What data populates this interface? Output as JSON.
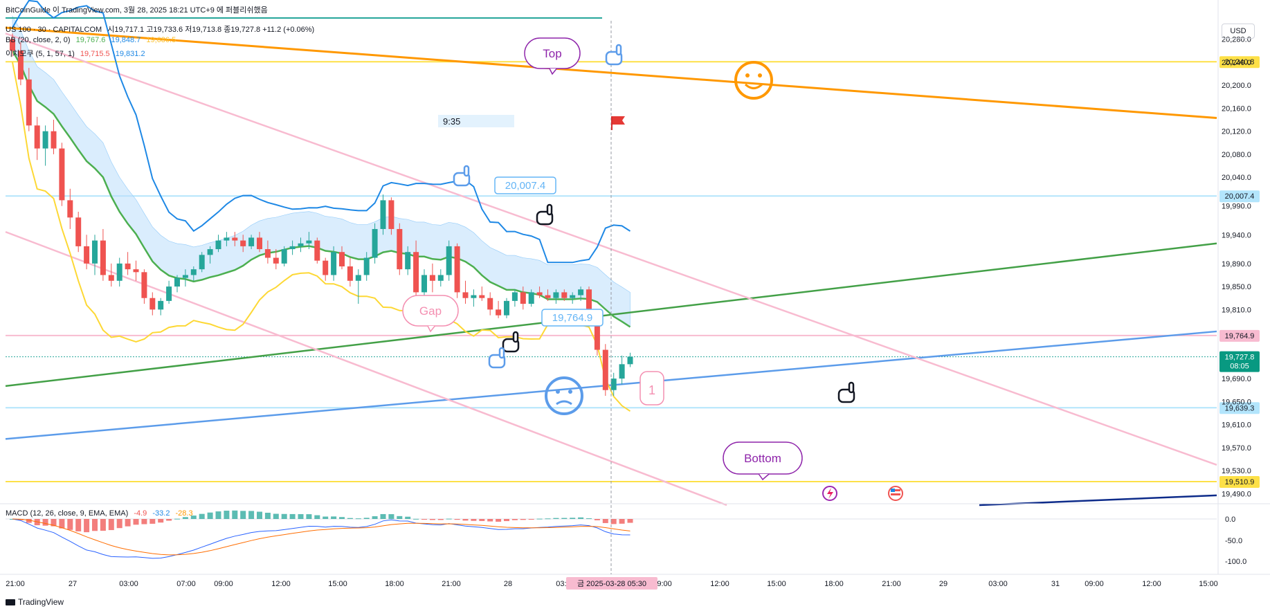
{
  "header": {
    "watermark": "BitCoinGuide 이 TradingView.com, 3월 28, 2025 18:21 UTC+9 에 퍼블리쉬했음",
    "symbol": "US 100 · 30 · CAPITALCOM",
    "ohlc": "시19,717.1  고19,733.6  저19,713.8  종19,727.8  +11.2 (+0.06%)",
    "bb_label": "BB (20, close, 2, 0)",
    "bb_values": [
      "19,767.6",
      "19,848.7",
      "19,686.5"
    ],
    "ichimoku_label": "이치모쿠 (5, 1, 57, 1)",
    "ichimoku_values": [
      "19,715.5",
      "19,831.2"
    ],
    "macd_label": "MACD (12, 26, close, 9, EMA, EMA)",
    "macd_values": [
      "-4.9",
      "-33.2",
      "-28.3"
    ]
  },
  "currency": "USD",
  "footer": {
    "brand": "TradingView"
  },
  "colors": {
    "up": "#26a69a",
    "down": "#ef5350",
    "bb_mid": "#4caf50",
    "bb_upper": "#1e88e5",
    "bb_lower": "#fdd835",
    "cloud": "#bbdefb",
    "orange": "#ff9800",
    "pink": "#f8bbd0",
    "blue_trend": "#5c9cea",
    "green_trend": "#43a047"
  },
  "chart_data": {
    "type": "candlestick",
    "price_axis_ticks": [
      "20,280.0",
      "20,240.0",
      "20,200.0",
      "20,160.0",
      "20,120.0",
      "20,080.0",
      "20,040.0",
      "19,990.0",
      "19,940.0",
      "19,890.0",
      "19,850.0",
      "19,810.0",
      "19,690.0",
      "19,650.0",
      "19,610.0",
      "19,570.0",
      "19,530.0",
      "19,490.0"
    ],
    "macd_axis_ticks": [
      "0.0",
      "-50.0",
      "-100.0"
    ],
    "time_axis_ticks": [
      "21:00",
      "27",
      "03:00",
      "07:00",
      "09:00",
      "12:00",
      "15:00",
      "18:00",
      "21:00",
      "28",
      "03:00",
      "09:00",
      "12:00",
      "15:00",
      "18:00",
      "21:00",
      "29",
      "03:00",
      "31",
      "09:00",
      "12:00",
      "15:00"
    ],
    "price_tags": [
      {
        "value": "20,240.8",
        "style": "yellow"
      },
      {
        "value": "20,007.4",
        "style": "lightblue"
      },
      {
        "value": "19,764.9",
        "style": "pink"
      },
      {
        "value": "19,727.8",
        "style": "current",
        "sub": "08:05"
      },
      {
        "value": "19,639.3",
        "style": "lightblue"
      },
      {
        "value": "19,510.9",
        "style": "yellow"
      }
    ],
    "crosshair_time": "금 2025-03-28  05:30",
    "annotations": [
      "Top",
      "Gap",
      "Bottom",
      "20,007.4",
      "19,764.9",
      "9:35",
      "1"
    ],
    "candles": [
      [
        20280,
        20290,
        20250,
        20260
      ],
      [
        20260,
        20275,
        20200,
        20210
      ],
      [
        20210,
        20230,
        20120,
        20130
      ],
      [
        20130,
        20145,
        20070,
        20090
      ],
      [
        20090,
        20130,
        20060,
        20120
      ],
      [
        20120,
        20140,
        20080,
        20090
      ],
      [
        20090,
        20100,
        19990,
        20000
      ],
      [
        20000,
        20020,
        19950,
        19970
      ],
      [
        19970,
        19980,
        19910,
        19920
      ],
      [
        19920,
        19940,
        19880,
        19890
      ],
      [
        19890,
        19940,
        19870,
        19930
      ],
      [
        19930,
        19950,
        19860,
        19870
      ],
      [
        19870,
        19890,
        19850,
        19860
      ],
      [
        19860,
        19900,
        19850,
        19890
      ],
      [
        19890,
        19910,
        19870,
        19880
      ],
      [
        19880,
        19895,
        19860,
        19875
      ],
      [
        19875,
        19880,
        19820,
        19830
      ],
      [
        19830,
        19840,
        19800,
        19810
      ],
      [
        19810,
        19830,
        19800,
        19825
      ],
      [
        19825,
        19860,
        19820,
        19850
      ],
      [
        19850,
        19870,
        19840,
        19865
      ],
      [
        19865,
        19880,
        19850,
        19870
      ],
      [
        19870,
        19885,
        19860,
        19880
      ],
      [
        19880,
        19910,
        19875,
        19905
      ],
      [
        19905,
        19920,
        19890,
        19915
      ],
      [
        19915,
        19940,
        19910,
        19930
      ],
      [
        19930,
        19945,
        19920,
        19935
      ],
      [
        19935,
        19945,
        19920,
        19930
      ],
      [
        19930,
        19940,
        19910,
        19920
      ],
      [
        19920,
        19940,
        19915,
        19935
      ],
      [
        19935,
        19945,
        19910,
        19915
      ],
      [
        19915,
        19930,
        19890,
        19900
      ],
      [
        19900,
        19915,
        19880,
        19890
      ],
      [
        19890,
        19920,
        19885,
        19915
      ],
      [
        19915,
        19930,
        19905,
        19920
      ],
      [
        19920,
        19935,
        19910,
        19925
      ],
      [
        19925,
        19945,
        19915,
        19930
      ],
      [
        19930,
        19935,
        19890,
        19895
      ],
      [
        19895,
        19900,
        19860,
        19870
      ],
      [
        19870,
        19920,
        19860,
        19910
      ],
      [
        19910,
        19920,
        19880,
        19885
      ],
      [
        19885,
        19900,
        19850,
        19860
      ],
      [
        19860,
        19880,
        19820,
        19870
      ],
      [
        19870,
        19910,
        19860,
        19900
      ],
      [
        19900,
        19960,
        19890,
        19950
      ],
      [
        19950,
        20010,
        19940,
        20000
      ],
      [
        20000,
        20005,
        19940,
        19950
      ],
      [
        19950,
        19960,
        19870,
        19880
      ],
      [
        19880,
        19920,
        19870,
        19910
      ],
      [
        19910,
        19930,
        19830,
        19840
      ],
      [
        19840,
        19880,
        19830,
        19870
      ],
      [
        19870,
        19890,
        19840,
        19860
      ],
      [
        19860,
        19880,
        19850,
        19870
      ],
      [
        19870,
        19930,
        19860,
        19920
      ],
      [
        19920,
        19925,
        19830,
        19840
      ],
      [
        19840,
        19860,
        19820,
        19830
      ],
      [
        19830,
        19845,
        19815,
        19835
      ],
      [
        19835,
        19850,
        19825,
        19830
      ],
      [
        19830,
        19840,
        19800,
        19810
      ],
      [
        19810,
        19825,
        19795,
        19800
      ],
      [
        19800,
        19830,
        19795,
        19825
      ],
      [
        19825,
        19845,
        19815,
        19840
      ],
      [
        19840,
        19850,
        19810,
        19820
      ],
      [
        19820,
        19845,
        19815,
        19840
      ],
      [
        19840,
        19850,
        19830,
        19835
      ],
      [
        19835,
        19845,
        19825,
        19830
      ],
      [
        19830,
        19845,
        19820,
        19840
      ],
      [
        19840,
        19845,
        19825,
        19830
      ],
      [
        19830,
        19840,
        19820,
        19835
      ],
      [
        19835,
        19850,
        19825,
        19845
      ],
      [
        19845,
        19850,
        19790,
        19800
      ],
      [
        19800,
        19810,
        19730,
        19740
      ],
      [
        19740,
        19750,
        19660,
        19670
      ],
      [
        19670,
        19700,
        19660,
        19690
      ],
      [
        19690,
        19730,
        19680,
        19715
      ],
      [
        19715,
        19735,
        19710,
        19728
      ]
    ]
  }
}
